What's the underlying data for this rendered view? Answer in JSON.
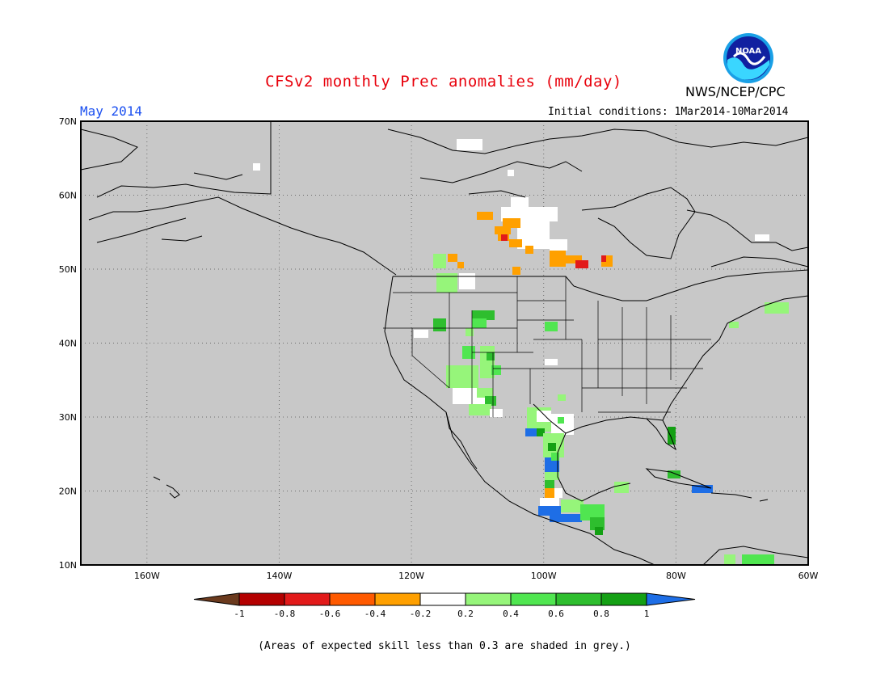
{
  "title": "CFSv2 monthly Prec anomalies (mm/day)",
  "agency": "NWS/NCEP/CPC",
  "logo_text": "NOAA",
  "target_month": "May 2014",
  "initial_conditions": "Initial conditions: 1Mar2014-10Mar2014",
  "footnote": "(Areas of expected skill less than 0.3 are shaded in grey.)",
  "axes": {
    "lat_labels": [
      "70N",
      "60N",
      "50N",
      "40N",
      "30N",
      "20N",
      "10N"
    ],
    "lon_labels": [
      "160W",
      "140W",
      "120W",
      "100W",
      "80W",
      "60W"
    ]
  },
  "legend": {
    "tick_labels": [
      "-1",
      "-0.8",
      "-0.6",
      "-0.4",
      "-0.2",
      "0.2",
      "0.4",
      "0.6",
      "0.8",
      "1"
    ],
    "colors": [
      "#6b3a1e",
      "#b40000",
      "#e21a1a",
      "#ff5a00",
      "#ffa000",
      "#ffffff",
      "#96f57a",
      "#50e650",
      "#2ebe2e",
      "#14a014",
      "#1e6ee6"
    ]
  },
  "colors": {
    "map_background": "#c8c8c8",
    "title": "#e8000b",
    "month": "#1a4ff0"
  },
  "anomaly_regions": [
    {
      "name": "central-canada",
      "sign": "negative",
      "values": "-0.4 to -0.6"
    },
    {
      "name": "mexico-central-america",
      "sign": "positive",
      "values": "0.2 to 1"
    },
    {
      "name": "southwest-us",
      "sign": "positive",
      "values": "0.2 to 0.6"
    }
  ]
}
